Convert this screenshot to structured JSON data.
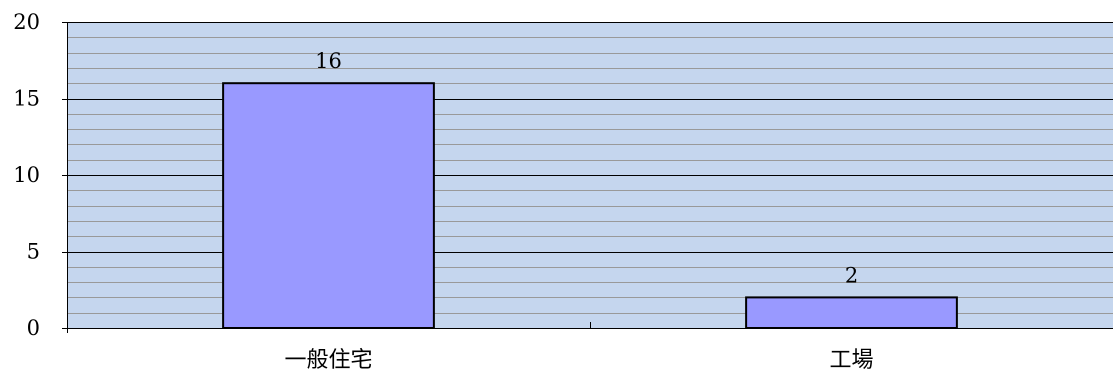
{
  "chart_data": {
    "type": "bar",
    "title": "",
    "xlabel": "",
    "ylabel": "",
    "categories": [
      "一般住宅",
      "工場"
    ],
    "values": [
      16,
      2
    ],
    "data_labels": [
      "16",
      "2"
    ],
    "ylim": [
      0,
      20
    ],
    "y_ticks": [
      0,
      5,
      10,
      15,
      20
    ],
    "y_tick_labels": [
      "0",
      "5",
      "10",
      "15",
      "20"
    ],
    "major_grid_step": 5,
    "minor_grid_step": 1,
    "grid": true,
    "legend": "none",
    "colors": {
      "plot_background": "#c5d6ee",
      "bar_fill": "#9999ff",
      "bar_stroke": "#000000",
      "minor_grid": "#999999",
      "major_grid": "#000000",
      "axis": "#000000"
    }
  }
}
